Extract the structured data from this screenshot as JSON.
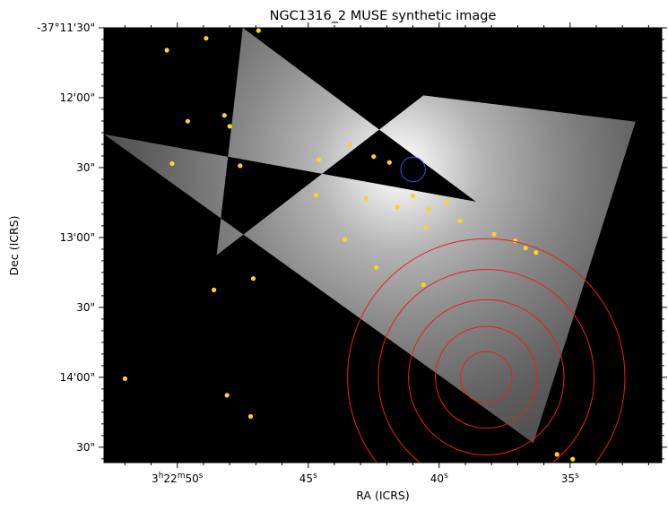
{
  "chart_data": {
    "type": "scatter",
    "title": "NGC1316_2 MUSE synthetic image",
    "xlabel": "RA (ICRS)",
    "ylabel": "Dec (ICRS)",
    "background": "#000000",
    "grid": false,
    "x_axis": {
      "unit": "seconds of RA (offset from 3h22m)",
      "range": [
        52.8,
        31.5
      ],
      "ticks": [
        {
          "value": 50,
          "label": "3h22m50s"
        },
        {
          "value": 45,
          "label": "45s"
        },
        {
          "value": 40,
          "label": "40s"
        },
        {
          "value": 35,
          "label": "35s"
        }
      ]
    },
    "y_axis": {
      "unit": "arcsec south of -37°11'30\"",
      "range": [
        0,
        156
      ],
      "ticks": [
        {
          "value": 0,
          "label": "-37°11'30\""
        },
        {
          "value": 30,
          "label": "12'00\""
        },
        {
          "value": 60,
          "label": "30\""
        },
        {
          "value": 90,
          "label": "13'00\""
        },
        {
          "value": 120,
          "label": "30\""
        },
        {
          "value": 150,
          "label": "14'00\""
        },
        {
          "value": 180,
          "label": "30\""
        }
      ]
    },
    "image_footprint": {
      "description": "grayscale MUSE mosaic footprint",
      "vertices": [
        [
          47.5,
          0
        ],
        [
          38.6,
          74.6
        ],
        [
          52.8,
          45.7
        ],
        [
          36.4,
          178.2
        ],
        [
          32.5,
          40.3
        ],
        [
          40.6,
          29.0
        ],
        [
          48.5,
          97.6
        ]
      ]
    },
    "stars": {
      "color": "#ffd21f",
      "points": [
        [
          50.4,
          9.6
        ],
        [
          48.9,
          4.5
        ],
        [
          46.9,
          1.2
        ],
        [
          48.2,
          37.6
        ],
        [
          48.0,
          42.3
        ],
        [
          49.6,
          40.1
        ],
        [
          47.6,
          59.2
        ],
        [
          44.6,
          56.6
        ],
        [
          50.2,
          58.3
        ],
        [
          44.7,
          71.8
        ],
        [
          43.4,
          50.1
        ],
        [
          42.5,
          55.3
        ],
        [
          41.9,
          57.8
        ],
        [
          42.8,
          73.3
        ],
        [
          41.6,
          76.9
        ],
        [
          41.0,
          72.1
        ],
        [
          40.4,
          77.9
        ],
        [
          40.5,
          85.7
        ],
        [
          39.7,
          74.8
        ],
        [
          39.2,
          82.8
        ],
        [
          37.1,
          91.4
        ],
        [
          37.9,
          88.6
        ],
        [
          36.3,
          96.4
        ],
        [
          36.7,
          94.5
        ],
        [
          42.4,
          102.9
        ],
        [
          47.1,
          107.6
        ],
        [
          48.6,
          112.5
        ],
        [
          40.6,
          110.3
        ],
        [
          43.6,
          90.8
        ],
        [
          52.0,
          150.6
        ],
        [
          47.2,
          166.8
        ],
        [
          34.9,
          185.1
        ],
        [
          35.5,
          183.1
        ],
        [
          48.1,
          157.7
        ]
      ]
    },
    "annotations": [
      {
        "type": "circle",
        "color": "#4a4aff",
        "center": [
          41.0,
          60.8
        ],
        "radius_arcsec": 2.2
      },
      {
        "type": "concentric_circles",
        "color": "#e8201e",
        "center": [
          38.2,
          150.0
        ],
        "radii_arcsec": [
          4.6,
          9.1,
          13.9,
          19.3,
          24.8
        ]
      }
    ]
  }
}
